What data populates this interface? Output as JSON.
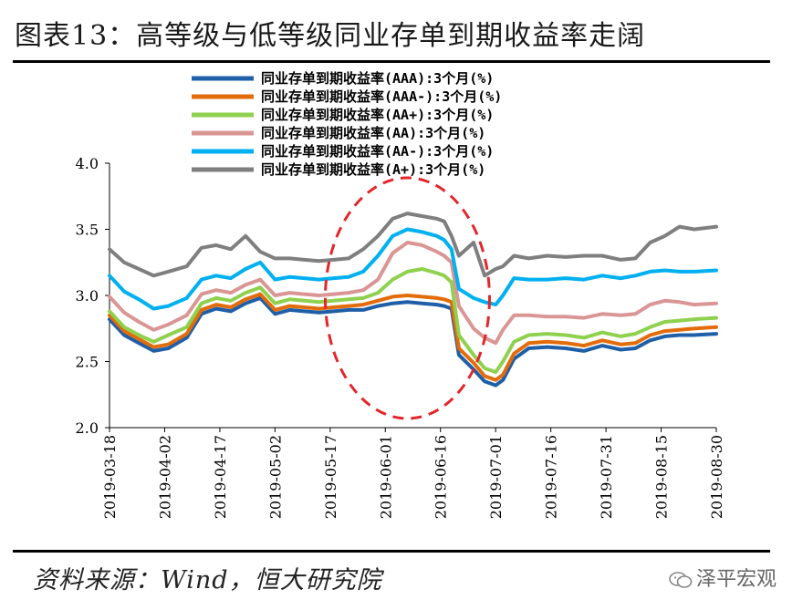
{
  "title": "图表13：高等级与低等级同业存单到期收益率走阔",
  "source": "资料来源：Wind，恒大研究院",
  "brand": "泽平宏观",
  "chart_data": {
    "type": "line",
    "title": "",
    "xlabel": "",
    "ylabel": "",
    "ylim": [
      2.0,
      4.0
    ],
    "yticks": [
      "2.0",
      "2.5",
      "3.0",
      "3.5",
      "4.0"
    ],
    "xticks": [
      "2019-03-18",
      "2019-04-02",
      "2019-04-17",
      "2019-05-02",
      "2019-05-17",
      "2019-06-01",
      "2019-06-16",
      "2019-07-01",
      "2019-07-16",
      "2019-07-31",
      "2019-08-15",
      "2019-08-30"
    ],
    "legend_position": "top-center",
    "annotation": "red dashed ellipse around 2019-06 spread widening",
    "series": [
      {
        "name": "同业存单到期收益率(AAA):3个月(%)",
        "color": "#1f5fa8",
        "x": [
          "2019-03-18",
          "2019-03-22",
          "2019-03-26",
          "2019-03-30",
          "2019-04-03",
          "2019-04-08",
          "2019-04-12",
          "2019-04-16",
          "2019-04-20",
          "2019-04-24",
          "2019-04-28",
          "2019-05-02",
          "2019-05-06",
          "2019-05-10",
          "2019-05-14",
          "2019-05-18",
          "2019-05-22",
          "2019-05-26",
          "2019-05-30",
          "2019-06-03",
          "2019-06-07",
          "2019-06-11",
          "2019-06-15",
          "2019-06-17",
          "2019-06-19",
          "2019-06-21",
          "2019-06-25",
          "2019-06-28",
          "2019-07-01",
          "2019-07-03",
          "2019-07-06",
          "2019-07-10",
          "2019-07-15",
          "2019-07-20",
          "2019-07-25",
          "2019-07-30",
          "2019-08-04",
          "2019-08-08",
          "2019-08-12",
          "2019-08-16",
          "2019-08-20",
          "2019-08-24",
          "2019-08-30"
        ],
        "values": [
          2.82,
          2.7,
          2.64,
          2.58,
          2.6,
          2.68,
          2.86,
          2.9,
          2.88,
          2.94,
          2.98,
          2.86,
          2.89,
          2.88,
          2.87,
          2.88,
          2.89,
          2.89,
          2.92,
          2.94,
          2.95,
          2.94,
          2.93,
          2.92,
          2.9,
          2.55,
          2.44,
          2.35,
          2.32,
          2.36,
          2.52,
          2.6,
          2.61,
          2.6,
          2.58,
          2.62,
          2.59,
          2.6,
          2.66,
          2.69,
          2.7,
          2.7,
          2.71
        ]
      },
      {
        "name": "同业存单到期收益率(AAA-):3个月(%)",
        "color": "#e36c0a",
        "x": [
          "2019-03-18",
          "2019-03-22",
          "2019-03-26",
          "2019-03-30",
          "2019-04-03",
          "2019-04-08",
          "2019-04-12",
          "2019-04-16",
          "2019-04-20",
          "2019-04-24",
          "2019-04-28",
          "2019-05-02",
          "2019-05-06",
          "2019-05-10",
          "2019-05-14",
          "2019-05-18",
          "2019-05-22",
          "2019-05-26",
          "2019-05-30",
          "2019-06-03",
          "2019-06-07",
          "2019-06-11",
          "2019-06-15",
          "2019-06-17",
          "2019-06-19",
          "2019-06-21",
          "2019-06-25",
          "2019-06-28",
          "2019-07-01",
          "2019-07-03",
          "2019-07-06",
          "2019-07-10",
          "2019-07-15",
          "2019-07-20",
          "2019-07-25",
          "2019-07-30",
          "2019-08-04",
          "2019-08-08",
          "2019-08-12",
          "2019-08-16",
          "2019-08-20",
          "2019-08-24",
          "2019-08-30"
        ],
        "values": [
          2.85,
          2.73,
          2.67,
          2.61,
          2.63,
          2.71,
          2.89,
          2.93,
          2.91,
          2.97,
          3.01,
          2.89,
          2.92,
          2.91,
          2.9,
          2.91,
          2.92,
          2.93,
          2.96,
          2.99,
          3.0,
          2.99,
          2.98,
          2.97,
          2.95,
          2.6,
          2.49,
          2.39,
          2.36,
          2.4,
          2.56,
          2.64,
          2.65,
          2.64,
          2.62,
          2.66,
          2.63,
          2.64,
          2.7,
          2.73,
          2.74,
          2.75,
          2.76
        ]
      },
      {
        "name": "同业存单到期收益率(AA+):3个月(%)",
        "color": "#8fd14f",
        "x": [
          "2019-03-18",
          "2019-03-22",
          "2019-03-26",
          "2019-03-30",
          "2019-04-03",
          "2019-04-08",
          "2019-04-12",
          "2019-04-16",
          "2019-04-20",
          "2019-04-24",
          "2019-04-28",
          "2019-05-02",
          "2019-05-06",
          "2019-05-10",
          "2019-05-14",
          "2019-05-18",
          "2019-05-22",
          "2019-05-26",
          "2019-05-30",
          "2019-06-03",
          "2019-06-07",
          "2019-06-11",
          "2019-06-15",
          "2019-06-17",
          "2019-06-19",
          "2019-06-21",
          "2019-06-25",
          "2019-06-28",
          "2019-07-01",
          "2019-07-03",
          "2019-07-06",
          "2019-07-10",
          "2019-07-15",
          "2019-07-20",
          "2019-07-25",
          "2019-07-30",
          "2019-08-04",
          "2019-08-08",
          "2019-08-12",
          "2019-08-16",
          "2019-08-20",
          "2019-08-24",
          "2019-08-30"
        ],
        "values": [
          2.88,
          2.76,
          2.7,
          2.65,
          2.7,
          2.76,
          2.94,
          2.98,
          2.96,
          3.02,
          3.06,
          2.94,
          2.97,
          2.96,
          2.95,
          2.96,
          2.97,
          2.98,
          3.02,
          3.12,
          3.18,
          3.2,
          3.17,
          3.15,
          3.1,
          2.7,
          2.55,
          2.45,
          2.42,
          2.5,
          2.65,
          2.7,
          2.71,
          2.7,
          2.68,
          2.72,
          2.69,
          2.71,
          2.76,
          2.8,
          2.81,
          2.82,
          2.83
        ]
      },
      {
        "name": "同业存单到期收益率(AA):3个月(%)",
        "color": "#d99694",
        "x": [
          "2019-03-18",
          "2019-03-22",
          "2019-03-26",
          "2019-03-30",
          "2019-04-03",
          "2019-04-08",
          "2019-04-12",
          "2019-04-16",
          "2019-04-20",
          "2019-04-24",
          "2019-04-28",
          "2019-05-02",
          "2019-05-06",
          "2019-05-10",
          "2019-05-14",
          "2019-05-18",
          "2019-05-22",
          "2019-05-26",
          "2019-05-30",
          "2019-06-03",
          "2019-06-07",
          "2019-06-11",
          "2019-06-15",
          "2019-06-17",
          "2019-06-19",
          "2019-06-21",
          "2019-06-25",
          "2019-06-28",
          "2019-07-01",
          "2019-07-03",
          "2019-07-06",
          "2019-07-10",
          "2019-07-15",
          "2019-07-20",
          "2019-07-25",
          "2019-07-30",
          "2019-08-04",
          "2019-08-08",
          "2019-08-12",
          "2019-08-16",
          "2019-08-20",
          "2019-08-24",
          "2019-08-30"
        ],
        "values": [
          2.99,
          2.87,
          2.8,
          2.74,
          2.78,
          2.85,
          3.01,
          3.04,
          3.02,
          3.08,
          3.12,
          3.0,
          3.02,
          3.01,
          3.0,
          3.01,
          3.02,
          3.04,
          3.12,
          3.32,
          3.4,
          3.38,
          3.33,
          3.3,
          3.25,
          2.92,
          2.75,
          2.68,
          2.64,
          2.74,
          2.85,
          2.85,
          2.84,
          2.84,
          2.83,
          2.86,
          2.85,
          2.86,
          2.93,
          2.96,
          2.95,
          2.93,
          2.94
        ]
      },
      {
        "name": "同业存单到期收益率(AA-):3个月(%)",
        "color": "#00b0f0",
        "x": [
          "2019-03-18",
          "2019-03-22",
          "2019-03-26",
          "2019-03-30",
          "2019-04-03",
          "2019-04-08",
          "2019-04-12",
          "2019-04-16",
          "2019-04-20",
          "2019-04-24",
          "2019-04-28",
          "2019-05-02",
          "2019-05-06",
          "2019-05-10",
          "2019-05-14",
          "2019-05-18",
          "2019-05-22",
          "2019-05-26",
          "2019-05-30",
          "2019-06-03",
          "2019-06-07",
          "2019-06-11",
          "2019-06-15",
          "2019-06-17",
          "2019-06-19",
          "2019-06-21",
          "2019-06-25",
          "2019-06-28",
          "2019-07-01",
          "2019-07-03",
          "2019-07-06",
          "2019-07-10",
          "2019-07-15",
          "2019-07-20",
          "2019-07-25",
          "2019-07-30",
          "2019-08-04",
          "2019-08-08",
          "2019-08-12",
          "2019-08-16",
          "2019-08-20",
          "2019-08-24",
          "2019-08-30"
        ],
        "values": [
          3.15,
          3.03,
          2.97,
          2.9,
          2.92,
          2.98,
          3.12,
          3.15,
          3.13,
          3.2,
          3.25,
          3.12,
          3.14,
          3.13,
          3.12,
          3.13,
          3.14,
          3.18,
          3.3,
          3.45,
          3.5,
          3.48,
          3.45,
          3.42,
          3.35,
          3.05,
          2.98,
          2.95,
          2.93,
          3.0,
          3.13,
          3.12,
          3.12,
          3.13,
          3.12,
          3.15,
          3.13,
          3.15,
          3.18,
          3.19,
          3.18,
          3.18,
          3.19
        ]
      },
      {
        "name": "同业存单到期收益率(A+):3个月(%)",
        "color": "#7f7f7f",
        "x": [
          "2019-03-18",
          "2019-03-22",
          "2019-03-26",
          "2019-03-30",
          "2019-04-03",
          "2019-04-08",
          "2019-04-12",
          "2019-04-16",
          "2019-04-20",
          "2019-04-24",
          "2019-04-28",
          "2019-05-02",
          "2019-05-06",
          "2019-05-10",
          "2019-05-14",
          "2019-05-18",
          "2019-05-22",
          "2019-05-26",
          "2019-05-30",
          "2019-06-03",
          "2019-06-07",
          "2019-06-11",
          "2019-06-15",
          "2019-06-17",
          "2019-06-19",
          "2019-06-21",
          "2019-06-25",
          "2019-06-28",
          "2019-07-01",
          "2019-07-03",
          "2019-07-06",
          "2019-07-10",
          "2019-07-15",
          "2019-07-20",
          "2019-07-25",
          "2019-07-30",
          "2019-08-04",
          "2019-08-08",
          "2019-08-12",
          "2019-08-16",
          "2019-08-20",
          "2019-08-24",
          "2019-08-30"
        ],
        "values": [
          3.35,
          3.25,
          3.2,
          3.15,
          3.18,
          3.22,
          3.36,
          3.38,
          3.35,
          3.45,
          3.33,
          3.28,
          3.28,
          3.27,
          3.26,
          3.27,
          3.28,
          3.35,
          3.45,
          3.58,
          3.62,
          3.6,
          3.58,
          3.56,
          3.45,
          3.3,
          3.4,
          3.15,
          3.2,
          3.22,
          3.3,
          3.28,
          3.3,
          3.29,
          3.3,
          3.3,
          3.27,
          3.28,
          3.4,
          3.45,
          3.52,
          3.5,
          3.52
        ]
      }
    ]
  }
}
